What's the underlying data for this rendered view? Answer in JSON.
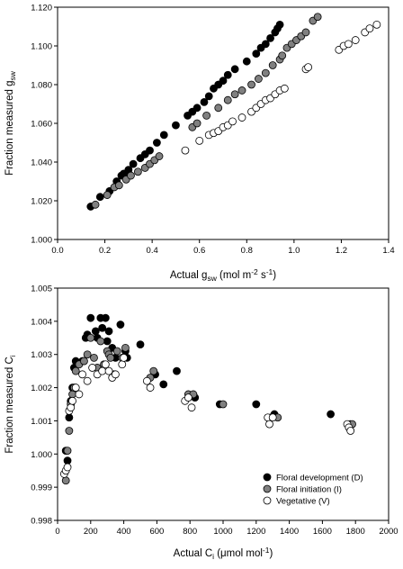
{
  "chart_data": [
    {
      "type": "scatter",
      "xlabel": {
        "main": "Actual g",
        "sub": "sw",
        "tail": " (mol m",
        "sup1": "-2",
        "mid": " s",
        "sup2": "-1",
        "end": ")"
      },
      "ylabel": {
        "main": "Fraction measured g",
        "sub": "sw"
      },
      "xlim": [
        0.0,
        1.4
      ],
      "ylim": [
        1.0,
        1.12
      ],
      "x_ticks": [
        "0.0",
        "0.2",
        "0.4",
        "0.6",
        "0.8",
        "1.0",
        "1.2",
        "1.4"
      ],
      "y_ticks": [
        "1.000",
        "1.020",
        "1.040",
        "1.060",
        "1.080",
        "1.100",
        "1.120"
      ],
      "grid": false,
      "series": [
        {
          "name": "Floral development (D)",
          "fill": "#000000",
          "points": [
            [
              0.14,
              1.017
            ],
            [
              0.18,
              1.022
            ],
            [
              0.22,
              1.025
            ],
            [
              0.25,
              1.03
            ],
            [
              0.27,
              1.033
            ],
            [
              0.28,
              1.034
            ],
            [
              0.3,
              1.036
            ],
            [
              0.32,
              1.039
            ],
            [
              0.35,
              1.042
            ],
            [
              0.37,
              1.044
            ],
            [
              0.39,
              1.046
            ],
            [
              0.42,
              1.05
            ],
            [
              0.45,
              1.054
            ],
            [
              0.5,
              1.059
            ],
            [
              0.55,
              1.064
            ],
            [
              0.57,
              1.066
            ],
            [
              0.59,
              1.068
            ],
            [
              0.62,
              1.071
            ],
            [
              0.64,
              1.074
            ],
            [
              0.66,
              1.078
            ],
            [
              0.68,
              1.08
            ],
            [
              0.7,
              1.082
            ],
            [
              0.72,
              1.085
            ],
            [
              0.75,
              1.088
            ],
            [
              0.8,
              1.092
            ],
            [
              0.84,
              1.096
            ],
            [
              0.86,
              1.099
            ],
            [
              0.88,
              1.101
            ],
            [
              0.9,
              1.104
            ],
            [
              0.92,
              1.107
            ],
            [
              0.93,
              1.109
            ],
            [
              0.94,
              1.111
            ]
          ]
        },
        {
          "name": "Floral initiation (I)",
          "fill": "#808080",
          "points": [
            [
              0.16,
              1.018
            ],
            [
              0.21,
              1.023
            ],
            [
              0.24,
              1.027
            ],
            [
              0.26,
              1.028
            ],
            [
              0.29,
              1.031
            ],
            [
              0.31,
              1.033
            ],
            [
              0.34,
              1.035
            ],
            [
              0.37,
              1.037
            ],
            [
              0.39,
              1.039
            ],
            [
              0.41,
              1.041
            ],
            [
              0.43,
              1.043
            ],
            [
              0.57,
              1.058
            ],
            [
              0.59,
              1.06
            ],
            [
              0.63,
              1.064
            ],
            [
              0.68,
              1.068
            ],
            [
              0.72,
              1.072
            ],
            [
              0.75,
              1.075
            ],
            [
              0.78,
              1.077
            ],
            [
              0.82,
              1.08
            ],
            [
              0.85,
              1.083
            ],
            [
              0.88,
              1.086
            ],
            [
              0.91,
              1.09
            ],
            [
              0.94,
              1.093
            ],
            [
              0.95,
              1.095
            ],
            [
              0.97,
              1.099
            ],
            [
              0.99,
              1.101
            ],
            [
              1.01,
              1.103
            ],
            [
              1.03,
              1.105
            ],
            [
              1.05,
              1.107
            ],
            [
              1.08,
              1.113
            ],
            [
              1.1,
              1.115
            ]
          ]
        },
        {
          "name": "Vegetative (V)",
          "fill": "#ffffff",
          "points": [
            [
              0.54,
              1.046
            ],
            [
              0.6,
              1.051
            ],
            [
              0.64,
              1.054
            ],
            [
              0.66,
              1.055
            ],
            [
              0.68,
              1.056
            ],
            [
              0.7,
              1.058
            ],
            [
              0.72,
              1.059
            ],
            [
              0.74,
              1.061
            ],
            [
              0.78,
              1.063
            ],
            [
              0.82,
              1.066
            ],
            [
              0.84,
              1.068
            ],
            [
              0.86,
              1.07
            ],
            [
              0.88,
              1.072
            ],
            [
              0.9,
              1.073
            ],
            [
              0.92,
              1.075
            ],
            [
              0.94,
              1.077
            ],
            [
              0.96,
              1.078
            ],
            [
              1.05,
              1.088
            ],
            [
              1.06,
              1.089
            ],
            [
              1.19,
              1.098
            ],
            [
              1.21,
              1.1
            ],
            [
              1.23,
              1.101
            ],
            [
              1.26,
              1.103
            ],
            [
              1.3,
              1.107
            ],
            [
              1.32,
              1.109
            ],
            [
              1.35,
              1.111
            ]
          ]
        }
      ]
    },
    {
      "type": "scatter",
      "xlabel": {
        "main": "Actual C",
        "sub": "i",
        "tail": " (μmol mol",
        "sup1": "-1",
        "end": ")"
      },
      "ylabel": {
        "main": "Fraction measured C",
        "sub": "i"
      },
      "xlim": [
        0,
        2000
      ],
      "ylim": [
        0.998,
        1.005
      ],
      "x_ticks": [
        "0",
        "200",
        "400",
        "600",
        "800",
        "1000",
        "1200",
        "1400",
        "1600",
        "1800",
        "2000"
      ],
      "y_ticks": [
        "0.998",
        "0.999",
        "1.000",
        "1.001",
        "1.002",
        "1.003",
        "1.004",
        "1.005"
      ],
      "grid": false,
      "legend": {
        "position": "bottom-right",
        "entries": [
          "Floral development (D)",
          "Floral initiation (I)",
          "Vegetative (V)"
        ]
      },
      "series": [
        {
          "name": "Floral development (D)",
          "fill": "#000000",
          "points": [
            [
              50,
              1.0001
            ],
            [
              60,
              0.9998
            ],
            [
              70,
              1.0011
            ],
            [
              80,
              1.0016
            ],
            [
              90,
              1.002
            ],
            [
              100,
              1.0026
            ],
            [
              110,
              1.0028
            ],
            [
              150,
              1.0028
            ],
            [
              170,
              1.0035
            ],
            [
              180,
              1.0036
            ],
            [
              200,
              1.0041
            ],
            [
              230,
              1.0037
            ],
            [
              240,
              1.0035
            ],
            [
              260,
              1.0041
            ],
            [
              270,
              1.0038
            ],
            [
              290,
              1.0041
            ],
            [
              300,
              1.0034
            ],
            [
              310,
              1.0037
            ],
            [
              330,
              1.0032
            ],
            [
              350,
              1.0029
            ],
            [
              380,
              1.0039
            ],
            [
              410,
              1.0031
            ],
            [
              420,
              1.0029
            ],
            [
              500,
              1.0033
            ],
            [
              590,
              1.0024
            ],
            [
              640,
              1.0021
            ],
            [
              720,
              1.0025
            ],
            [
              830,
              1.0017
            ],
            [
              980,
              1.0015
            ],
            [
              1200,
              1.0015
            ],
            [
              1310,
              1.0012
            ],
            [
              1650,
              1.0012
            ],
            [
              1770,
              1.0009
            ]
          ]
        },
        {
          "name": "Floral initiation (I)",
          "fill": "#808080",
          "points": [
            [
              50,
              0.9992
            ],
            [
              60,
              1.0001
            ],
            [
              70,
              1.0007
            ],
            [
              80,
              1.0015
            ],
            [
              90,
              1.0018
            ],
            [
              100,
              1.002
            ],
            [
              110,
              1.0025
            ],
            [
              130,
              1.0027
            ],
            [
              160,
              1.0028
            ],
            [
              180,
              1.003
            ],
            [
              200,
              1.0035
            ],
            [
              220,
              1.0029
            ],
            [
              240,
              1.0026
            ],
            [
              260,
              1.0034
            ],
            [
              280,
              1.0027
            ],
            [
              300,
              1.0031
            ],
            [
              310,
              1.003
            ],
            [
              320,
              1.0029
            ],
            [
              340,
              1.0024
            ],
            [
              360,
              1.0031
            ],
            [
              390,
              1.0029
            ],
            [
              410,
              1.0032
            ],
            [
              560,
              1.0023
            ],
            [
              580,
              1.0025
            ],
            [
              790,
              1.0018
            ],
            [
              820,
              1.0018
            ],
            [
              1000,
              1.0015
            ],
            [
              1290,
              1.0011
            ],
            [
              1330,
              1.0011
            ],
            [
              1780,
              1.0009
            ]
          ]
        },
        {
          "name": "Vegetative (V)",
          "fill": "#ffffff",
          "points": [
            [
              40,
              0.9994
            ],
            [
              50,
              0.9995
            ],
            [
              60,
              0.9996
            ],
            [
              70,
              1.0013
            ],
            [
              80,
              1.0014
            ],
            [
              90,
              1.0016
            ],
            [
              110,
              1.002
            ],
            [
              130,
              1.0018
            ],
            [
              150,
              1.0024
            ],
            [
              180,
              1.0022
            ],
            [
              210,
              1.0026
            ],
            [
              240,
              1.0024
            ],
            [
              270,
              1.0025
            ],
            [
              290,
              1.0027
            ],
            [
              310,
              1.0025
            ],
            [
              330,
              1.0023
            ],
            [
              350,
              1.0024
            ],
            [
              390,
              1.0027
            ],
            [
              400,
              1.0029
            ],
            [
              540,
              1.0022
            ],
            [
              560,
              1.002
            ],
            [
              770,
              1.0016
            ],
            [
              790,
              1.0017
            ],
            [
              810,
              1.0014
            ],
            [
              1270,
              1.0011
            ],
            [
              1280,
              1.0009
            ],
            [
              1300,
              1.0011
            ],
            [
              1750,
              1.0009
            ],
            [
              1760,
              1.0008
            ],
            [
              1770,
              1.0007
            ]
          ]
        }
      ]
    }
  ]
}
